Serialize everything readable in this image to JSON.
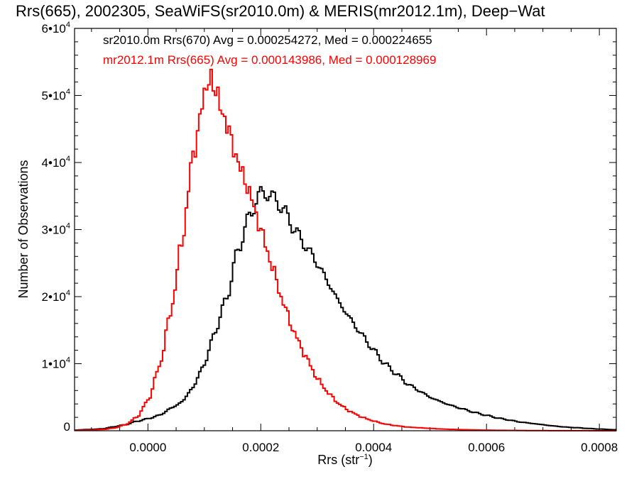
{
  "chart_data": {
    "type": "line",
    "title": "Rrs(665), 2002305, SeaWiFS(sr2010.0m) & MERIS(mr2012.1m), Deep−Wat",
    "xlabel": "Rrs (str",
    "xlabel_sup": "−1",
    "xlabel_close": ")",
    "ylabel": "Number of Observations",
    "xlim": [
      -0.00013,
      0.00083
    ],
    "ylim": [
      0,
      60000
    ],
    "grid": false,
    "legend_position": "top-left",
    "x_ticks": [
      {
        "value": 0.0,
        "label": "0.0000"
      },
      {
        "value": 0.0002,
        "label": "0.0002"
      },
      {
        "value": 0.0004,
        "label": "0.0004"
      },
      {
        "value": 0.0006,
        "label": "0.0006"
      },
      {
        "value": 0.0008,
        "label": "0.0008"
      }
    ],
    "y_ticks": [
      {
        "value": 0,
        "label": "0",
        "sup": ""
      },
      {
        "value": 10000,
        "label": "1•10",
        "sup": "4"
      },
      {
        "value": 20000,
        "label": "2•10",
        "sup": "4"
      },
      {
        "value": 30000,
        "label": "3•10",
        "sup": "4"
      },
      {
        "value": 40000,
        "label": "4•10",
        "sup": "4"
      },
      {
        "value": 50000,
        "label": "5•10",
        "sup": "4"
      },
      {
        "value": 60000,
        "label": "6•10",
        "sup": "4"
      }
    ],
    "series": [
      {
        "name": "sr2010.0m Rrs(670) Avg = 0.000254272, Med = 0.000224655",
        "color": "#000000",
        "x": [
          -0.00013,
          -0.0001,
          -8e-05,
          -6e-05,
          -4e-05,
          -2e-05,
          0.0,
          2e-05,
          4e-05,
          6e-05,
          8e-05,
          0.0001,
          0.00012,
          0.00014,
          0.00016,
          0.00018,
          0.0002,
          0.00022,
          0.00024,
          0.00026,
          0.00028,
          0.0003,
          0.00032,
          0.00034,
          0.00036,
          0.00038,
          0.0004,
          0.00042,
          0.00044,
          0.00046,
          0.00048,
          0.0005,
          0.00052,
          0.00054,
          0.00056,
          0.00058,
          0.0006,
          0.00062,
          0.00064,
          0.00066,
          0.00068,
          0.0007,
          0.00072,
          0.00074,
          0.00076,
          0.00078,
          0.0008,
          0.00083
        ],
        "y": [
          100,
          200,
          300,
          600,
          900,
          1400,
          1800,
          2300,
          3300,
          4300,
          6500,
          10000,
          15000,
          20000,
          27000,
          32000,
          35500,
          35000,
          33000,
          30000,
          27500,
          25000,
          22000,
          19000,
          16500,
          14200,
          12000,
          10000,
          8500,
          7000,
          6000,
          5000,
          4300,
          3700,
          3200,
          2700,
          2300,
          1900,
          1600,
          1300,
          1100,
          900,
          700,
          550,
          450,
          350,
          250,
          150
        ]
      },
      {
        "name": "mr2012.1m Rrs(665) Avg = 0.000143986, Med = 0.000128969",
        "color": "#ff0000",
        "x": [
          -0.00013,
          -0.0001,
          -8e-05,
          -6e-05,
          -4e-05,
          -2e-05,
          0.0,
          2e-05,
          4e-05,
          6e-05,
          8e-05,
          0.0001,
          0.00011,
          0.00012,
          0.00014,
          0.00016,
          0.00018,
          0.0002,
          0.00022,
          0.00024,
          0.00026,
          0.00028,
          0.0003,
          0.00032,
          0.00034,
          0.00036,
          0.00038,
          0.0004,
          0.00042,
          0.00044,
          0.00046,
          0.00048,
          0.0005,
          0.00052,
          0.00054,
          0.00056,
          0.00058,
          0.0006,
          0.00062,
          0.00064,
          0.00066,
          0.00068,
          0.0007,
          0.00072,
          0.00074,
          0.00076,
          0.00078,
          0.0008,
          0.00083
        ],
        "y": [
          50,
          100,
          200,
          400,
          900,
          2000,
          4500,
          9500,
          17500,
          28000,
          41000,
          50000,
          52800,
          50500,
          45500,
          40000,
          35500,
          30000,
          24500,
          19000,
          14500,
          11000,
          7800,
          5600,
          3900,
          2800,
          2000,
          1450,
          1000,
          750,
          550,
          450,
          350,
          260,
          200,
          160,
          120,
          90,
          70,
          55,
          40,
          30,
          22,
          16,
          12,
          9,
          7,
          5,
          3
        ]
      }
    ]
  }
}
